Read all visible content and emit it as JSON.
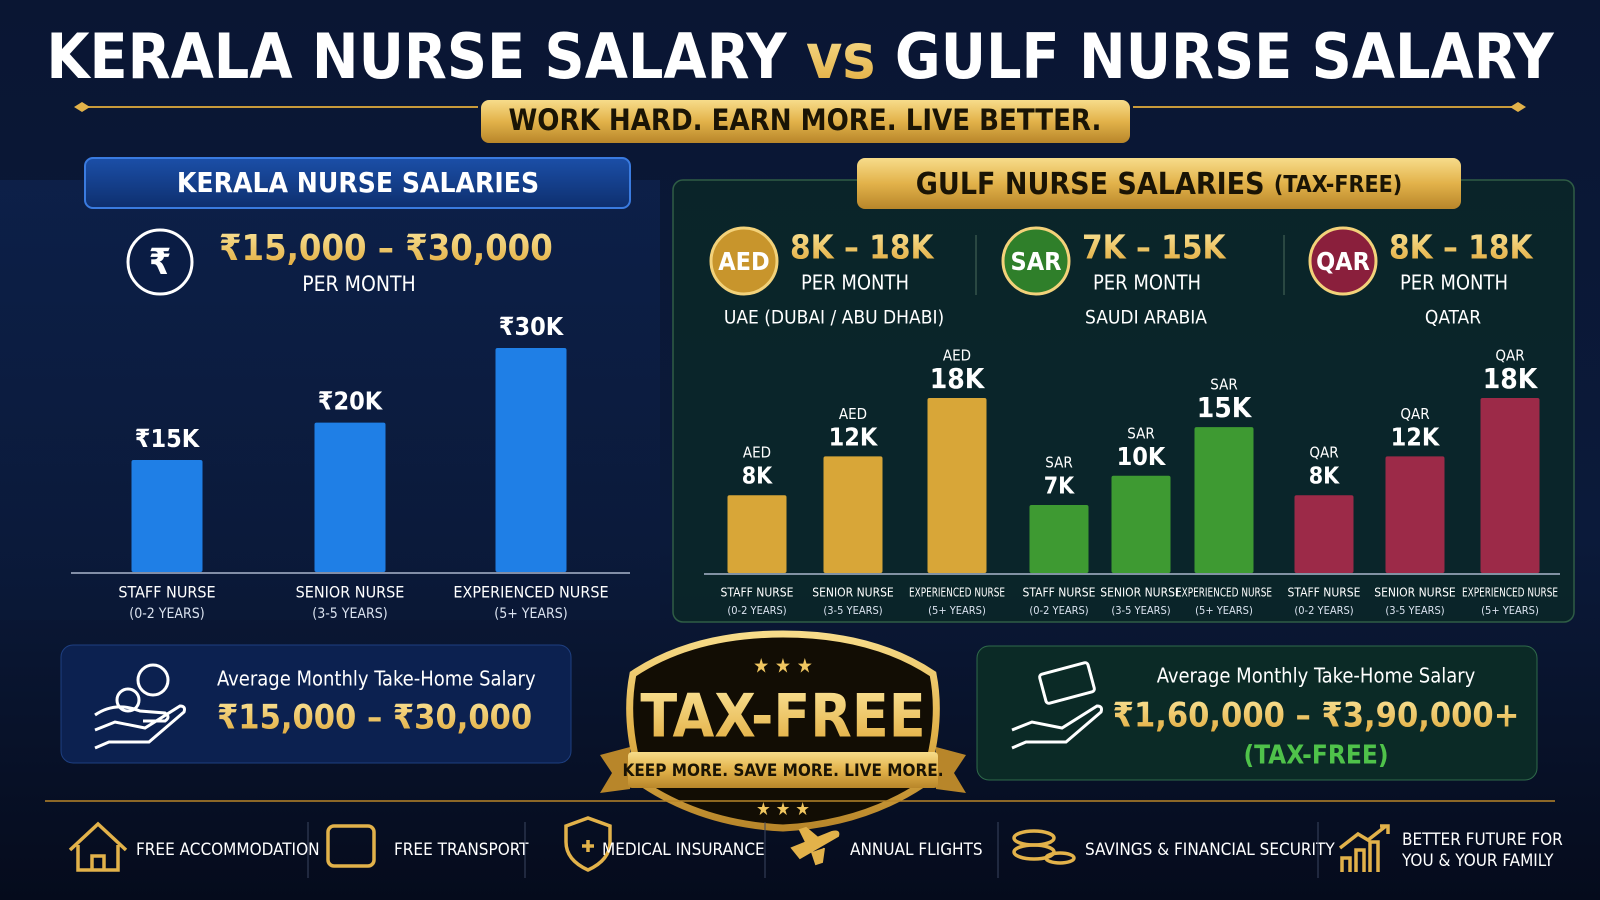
{
  "header": {
    "title_part1": "KERALA NURSE SALARY",
    "title_vs": "vs",
    "title_part2": "GULF NURSE SALARY",
    "tagline": "WORK HARD. EARN MORE. LIVE BETTER."
  },
  "kerala": {
    "heading": "KERALA NURSE SALARIES",
    "icon": "₹",
    "range": "₹15,000 – ₹30,000",
    "period": "PER MONTH"
  },
  "gulf": {
    "heading": "GULF NURSE SALARIES",
    "heading_note": "(TAX-FREE)",
    "countries": [
      {
        "range": "8K – 18K",
        "period": "PER MONTH",
        "place": "UAE (DUBAI / ABU DHABI)"
      },
      {
        "range": "7K – 15K",
        "period": "PER MONTH",
        "place": "SAUDI ARABIA"
      },
      {
        "range": "8K – 18K",
        "period": "PER MONTH",
        "place": "QATAR"
      }
    ]
  },
  "chart_data": [
    {
      "type": "bar",
      "categories": [
        "STAFF NURSE",
        "SENIOR NURSE",
        "EXPERIENCED NURSE"
      ],
      "category_notes": [
        "(0-2 YEARS)",
        "(3-5 YEARS)",
        "(5+ YEARS)"
      ],
      "values": [
        15000,
        20000,
        30000
      ],
      "value_labels": [
        "₹15K",
        "₹20K",
        "₹30K"
      ],
      "color": "#1f7fe6"
    },
    {
      "type": "bar",
      "categories": [
        "STAFF NURSE",
        "SENIOR NURSE",
        "EXPERIENCED NURSE"
      ],
      "category_notes": [
        "(0-2 YEARS)",
        "(3-5 YEARS)",
        "(5+ YEARS)"
      ],
      "series": [
        {
          "name": "AED",
          "color": "#d8a638",
          "values": [
            8000,
            12000,
            18000
          ],
          "value_labels": [
            "8K",
            "12K",
            "18K"
          ]
        },
        {
          "name": "SAR",
          "color": "#3e9a32",
          "values": [
            7000,
            10000,
            15000
          ],
          "value_labels": [
            "7K",
            "10K",
            "15K"
          ]
        },
        {
          "name": "QAR",
          "color": "#9c2a48",
          "values": [
            8000,
            12000,
            18000
          ],
          "value_labels": [
            "8K",
            "12K",
            "18K"
          ]
        }
      ]
    }
  ],
  "kerala_summary": {
    "label": "Average Monthly Take-Home Salary",
    "amount": "₹15,000 – ₹30,000"
  },
  "gulf_summary": {
    "label": "Average Monthly Take-Home Salary",
    "amount": "₹1,60,000 – ₹3,90,000+",
    "note": "(TAX-FREE)"
  },
  "badge": {
    "title": "TAX-FREE",
    "ribbon": "KEEP MORE. SAVE MORE. LIVE MORE."
  },
  "benefits": [
    [
      "FREE ACCOMMODATION"
    ],
    [
      "FREE TRANSPORT"
    ],
    [
      "MEDICAL INSURANCE"
    ],
    [
      "ANNUAL FLIGHTS"
    ],
    [
      "SAVINGS & FINANCIAL SECURITY"
    ],
    [
      "BETTER FUTURE FOR",
      "YOU & YOUR FAMILY"
    ]
  ]
}
